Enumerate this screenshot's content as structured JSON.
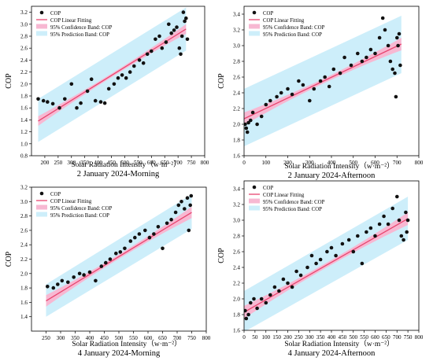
{
  "legend_labels": {
    "points": "COP",
    "fit": "COP Linear Fitting",
    "confidence": "95% Confidence Band: COP",
    "prediction": "95% Prediction Band: COP"
  },
  "colors": {
    "prediction_band": "#cdeefa",
    "confidence_band": "#f7b8d2",
    "fit_line": "#e8456f",
    "point_fill": "#111111",
    "axis": "#000000"
  },
  "chart_data": [
    {
      "type": "scatter",
      "caption": "2 January 2024-Morning",
      "xlabel": "Solar Radiation Intensity（w·m⁻²）",
      "ylabel": "COP",
      "xlim": [
        150,
        800
      ],
      "ylim": [
        0.8,
        3.3
      ],
      "xticks": [
        200,
        250,
        300,
        350,
        400,
        450,
        500,
        550,
        600,
        650,
        700,
        750,
        800
      ],
      "yticks": [
        0.8,
        1.0,
        1.2,
        1.4,
        1.6,
        1.8,
        2.0,
        2.2,
        2.4,
        2.6,
        2.8,
        3.0,
        3.2
      ],
      "fit": {
        "x": [
          175,
          730
        ],
        "y": [
          1.38,
          2.92
        ]
      },
      "confidence_band": [
        1.0,
        0.05
      ],
      "prediction_band": {
        "upper": [
          1.75,
          3.28
        ],
        "lower": [
          1.03,
          2.56
        ]
      },
      "points": [
        [
          175,
          1.75
        ],
        [
          195,
          1.72
        ],
        [
          210,
          1.7
        ],
        [
          230,
          1.67
        ],
        [
          255,
          1.6
        ],
        [
          275,
          1.75
        ],
        [
          300,
          2.0
        ],
        [
          320,
          1.6
        ],
        [
          335,
          1.68
        ],
        [
          360,
          1.88
        ],
        [
          375,
          2.08
        ],
        [
          390,
          1.72
        ],
        [
          410,
          1.7
        ],
        [
          425,
          1.68
        ],
        [
          440,
          1.92
        ],
        [
          460,
          2.0
        ],
        [
          475,
          2.1
        ],
        [
          490,
          2.15
        ],
        [
          505,
          2.1
        ],
        [
          520,
          2.2
        ],
        [
          535,
          2.3
        ],
        [
          555,
          2.4
        ],
        [
          570,
          2.35
        ],
        [
          585,
          2.5
        ],
        [
          600,
          2.55
        ],
        [
          615,
          2.75
        ],
        [
          630,
          2.8
        ],
        [
          640,
          2.6
        ],
        [
          655,
          2.7
        ],
        [
          665,
          3.0
        ],
        [
          675,
          2.85
        ],
        [
          685,
          2.9
        ],
        [
          695,
          2.95
        ],
        [
          705,
          2.6
        ],
        [
          710,
          2.5
        ],
        [
          715,
          2.8
        ],
        [
          720,
          3.2
        ],
        [
          725,
          3.05
        ],
        [
          730,
          3.1
        ],
        [
          735,
          2.75
        ]
      ]
    },
    {
      "type": "scatter",
      "caption": "2 January 2024-Afternoon",
      "xlabel": "Solar Radiation Intensity（w·m⁻²）",
      "ylabel": "COP",
      "xlim": [
        0,
        800
      ],
      "ylim": [
        1.6,
        3.5
      ],
      "xticks": [
        0,
        100,
        200,
        300,
        400,
        500,
        600,
        700,
        800
      ],
      "yticks": [
        1.6,
        1.8,
        2.0,
        2.2,
        2.4,
        2.6,
        2.8,
        3.0,
        3.2,
        3.4
      ],
      "fit": {
        "x": [
          0,
          720
        ],
        "y": [
          2.07,
          3.02
        ]
      },
      "confidence_band": [
        1.0,
        0.05
      ],
      "prediction_band": {
        "upper": [
          2.45,
          3.38
        ],
        "lower": [
          1.72,
          2.65
        ]
      },
      "points": [
        [
          5,
          2.0
        ],
        [
          10,
          1.95
        ],
        [
          15,
          1.9
        ],
        [
          20,
          2.02
        ],
        [
          30,
          2.05
        ],
        [
          40,
          2.15
        ],
        [
          60,
          2.0
        ],
        [
          80,
          2.1
        ],
        [
          100,
          2.25
        ],
        [
          120,
          2.3
        ],
        [
          150,
          2.35
        ],
        [
          170,
          2.4
        ],
        [
          200,
          2.45
        ],
        [
          220,
          2.38
        ],
        [
          250,
          2.55
        ],
        [
          270,
          2.5
        ],
        [
          300,
          2.3
        ],
        [
          320,
          2.45
        ],
        [
          350,
          2.55
        ],
        [
          370,
          2.6
        ],
        [
          390,
          2.48
        ],
        [
          410,
          2.7
        ],
        [
          440,
          2.65
        ],
        [
          460,
          2.85
        ],
        [
          490,
          2.75
        ],
        [
          520,
          2.9
        ],
        [
          540,
          2.8
        ],
        [
          560,
          2.85
        ],
        [
          580,
          2.95
        ],
        [
          600,
          2.9
        ],
        [
          620,
          3.1
        ],
        [
          635,
          3.35
        ],
        [
          645,
          3.2
        ],
        [
          660,
          3.0
        ],
        [
          670,
          2.8
        ],
        [
          680,
          2.7
        ],
        [
          690,
          2.65
        ],
        [
          695,
          2.35
        ],
        [
          700,
          3.1
        ],
        [
          705,
          3.0
        ],
        [
          710,
          3.15
        ],
        [
          715,
          2.75
        ]
      ]
    },
    {
      "type": "scatter",
      "caption": "4 January 2024-Morning",
      "xlabel": "Solar Radiation Intensity（w·m⁻²）",
      "ylabel": "COP",
      "xlim": [
        200,
        800
      ],
      "ylim": [
        1.2,
        3.2
      ],
      "xticks": [
        250,
        300,
        350,
        400,
        450,
        500,
        550,
        600,
        650,
        700,
        750,
        800
      ],
      "yticks": [
        1.4,
        1.6,
        1.8,
        2.0,
        2.2,
        2.4,
        2.6,
        2.8,
        3.0,
        3.2
      ],
      "fit": {
        "x": [
          250,
          750
        ],
        "y": [
          1.62,
          2.85
        ]
      },
      "confidence_band": [
        1.0,
        0.05
      ],
      "prediction_band": {
        "upper": [
          1.85,
          3.1
        ],
        "lower": [
          1.4,
          2.62
        ]
      },
      "points": [
        [
          255,
          1.82
        ],
        [
          275,
          1.8
        ],
        [
          290,
          1.85
        ],
        [
          305,
          1.9
        ],
        [
          325,
          1.88
        ],
        [
          345,
          1.95
        ],
        [
          365,
          2.0
        ],
        [
          380,
          1.98
        ],
        [
          400,
          2.02
        ],
        [
          420,
          1.9
        ],
        [
          440,
          2.1
        ],
        [
          455,
          2.15
        ],
        [
          470,
          2.2
        ],
        [
          490,
          2.28
        ],
        [
          505,
          2.3
        ],
        [
          520,
          2.35
        ],
        [
          540,
          2.45
        ],
        [
          555,
          2.5
        ],
        [
          570,
          2.55
        ],
        [
          590,
          2.6
        ],
        [
          605,
          2.5
        ],
        [
          620,
          2.55
        ],
        [
          635,
          2.65
        ],
        [
          650,
          2.35
        ],
        [
          665,
          2.7
        ],
        [
          680,
          2.75
        ],
        [
          695,
          2.85
        ],
        [
          705,
          2.95
        ],
        [
          715,
          3.0
        ],
        [
          725,
          2.9
        ],
        [
          735,
          3.05
        ],
        [
          740,
          2.6
        ],
        [
          745,
          2.95
        ],
        [
          748,
          3.08
        ]
      ]
    },
    {
      "type": "scatter",
      "caption": "4 January 2024-Afternoon",
      "xlabel": "Solar Radiation Intensity（w·m⁻²）",
      "ylabel": "COP",
      "xlim": [
        0,
        800
      ],
      "ylim": [
        1.6,
        3.5
      ],
      "xticks": [
        0,
        50,
        100,
        150,
        200,
        250,
        300,
        350,
        400,
        450,
        500,
        550,
        600,
        650,
        700,
        750,
        800
      ],
      "yticks": [
        1.6,
        1.8,
        2.0,
        2.2,
        2.4,
        2.6,
        2.8,
        3.0,
        3.2,
        3.4
      ],
      "fit": {
        "x": [
          0,
          750
        ],
        "y": [
          1.83,
          3.02
        ]
      },
      "confidence_band": [
        1.0,
        0.05
      ],
      "prediction_band": {
        "upper": [
          2.1,
          3.3
        ],
        "lower": [
          1.58,
          2.75
        ]
      },
      "points": [
        [
          5,
          1.85
        ],
        [
          10,
          1.75
        ],
        [
          20,
          1.8
        ],
        [
          30,
          1.95
        ],
        [
          45,
          2.0
        ],
        [
          60,
          1.88
        ],
        [
          80,
          2.0
        ],
        [
          100,
          1.95
        ],
        [
          120,
          2.05
        ],
        [
          140,
          2.15
        ],
        [
          160,
          2.1
        ],
        [
          180,
          2.25
        ],
        [
          200,
          2.2
        ],
        [
          220,
          2.15
        ],
        [
          240,
          2.35
        ],
        [
          260,
          2.3
        ],
        [
          290,
          2.4
        ],
        [
          310,
          2.55
        ],
        [
          330,
          2.45
        ],
        [
          350,
          2.5
        ],
        [
          380,
          2.6
        ],
        [
          400,
          2.65
        ],
        [
          420,
          2.55
        ],
        [
          450,
          2.7
        ],
        [
          480,
          2.75
        ],
        [
          500,
          2.6
        ],
        [
          520,
          2.8
        ],
        [
          540,
          2.45
        ],
        [
          560,
          2.85
        ],
        [
          580,
          2.9
        ],
        [
          600,
          2.8
        ],
        [
          620,
          2.95
        ],
        [
          640,
          3.05
        ],
        [
          660,
          2.95
        ],
        [
          680,
          3.15
        ],
        [
          700,
          3.3
        ],
        [
          710,
          3.0
        ],
        [
          720,
          2.8
        ],
        [
          730,
          2.75
        ],
        [
          740,
          3.1
        ],
        [
          745,
          2.85
        ],
        [
          750,
          3.0
        ]
      ]
    }
  ]
}
